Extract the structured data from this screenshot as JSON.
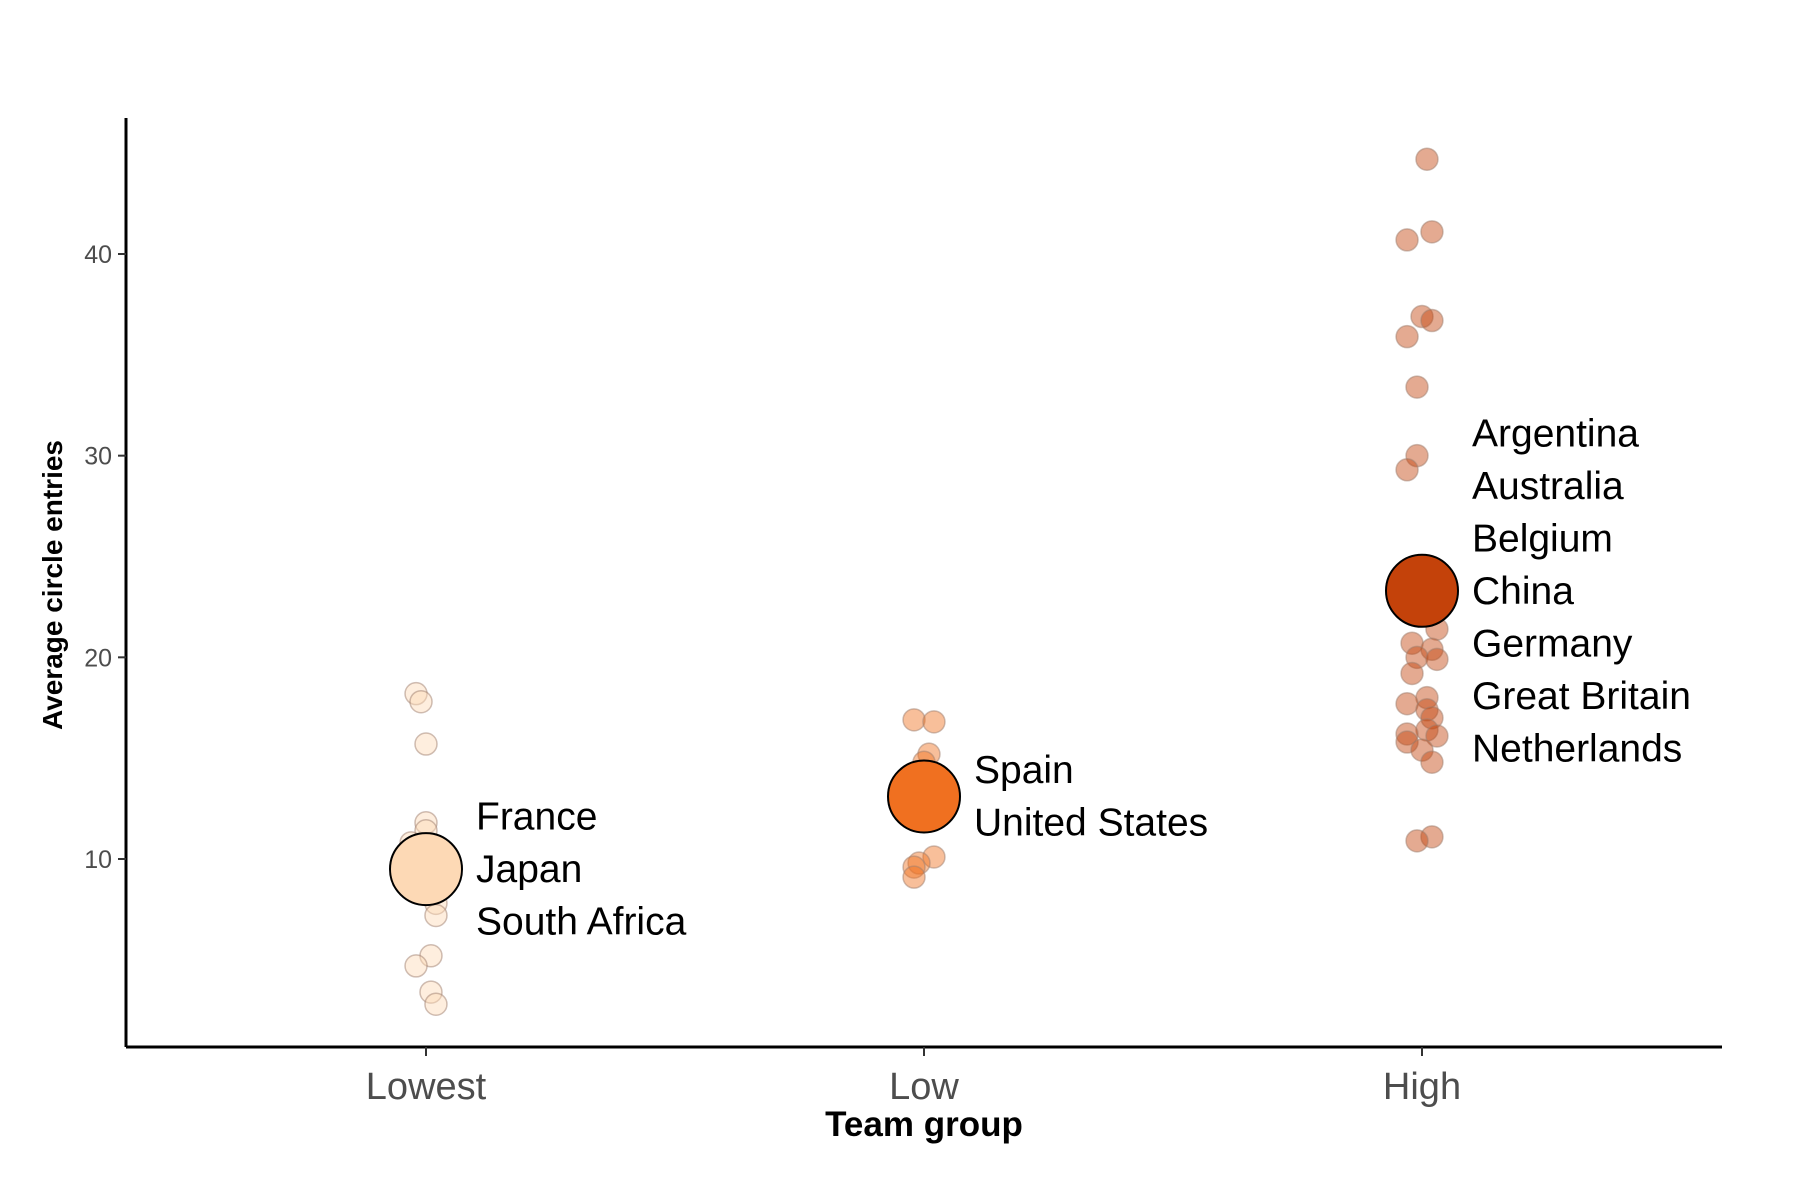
{
  "chart_data": {
    "type": "scatter",
    "title": "",
    "xlabel": "Team group",
    "ylabel": "Average circle entries",
    "categories": [
      "Lowest",
      "Low",
      "High"
    ],
    "ylim": [
      1.4,
      47.5
    ],
    "yticks": [
      10,
      20,
      30,
      40
    ],
    "grid": false,
    "legend": "none",
    "series": [
      {
        "category": "Lowest",
        "color": "#fdd9b5",
        "mean": 9.5,
        "points": [
          18.2,
          17.8,
          15.7,
          11.8,
          11.4,
          10.8,
          10.5,
          10.1,
          9.8,
          9.4,
          9.0,
          8.4,
          7.8,
          7.2,
          5.2,
          4.7,
          3.4,
          2.8
        ],
        "jitter": [
          -0.02,
          -0.01,
          0.0,
          0.0,
          0.0,
          -0.03,
          0.01,
          0.02,
          -0.02,
          -0.01,
          0.03,
          0.0,
          0.02,
          0.02,
          0.01,
          -0.02,
          0.01,
          0.02
        ],
        "countries": [
          "France",
          "Japan",
          "South Africa"
        ]
      },
      {
        "category": "Low",
        "color": "#f07020",
        "mean": 13.1,
        "points": [
          16.9,
          16.8,
          15.2,
          14.8,
          10.1,
          9.8,
          9.6,
          9.1
        ],
        "jitter": [
          -0.02,
          0.02,
          0.01,
          0.0,
          0.02,
          -0.01,
          -0.02,
          -0.02
        ],
        "countries": [
          "Spain",
          "United States"
        ]
      },
      {
        "category": "High",
        "color": "#c4420a",
        "mean": 23.3,
        "points": [
          44.7,
          41.1,
          40.7,
          36.9,
          36.7,
          35.9,
          33.4,
          30.0,
          29.3,
          24.4,
          23.8,
          22.5,
          21.4,
          20.7,
          20.4,
          20.0,
          19.9,
          19.2,
          18.0,
          17.7,
          17.4,
          17.0,
          16.4,
          16.2,
          16.1,
          15.8,
          15.4,
          14.8,
          11.1,
          10.9
        ],
        "jitter": [
          0.01,
          0.02,
          -0.03,
          0.0,
          0.02,
          -0.03,
          -0.01,
          -0.01,
          -0.03,
          0.0,
          0.02,
          -0.02,
          0.03,
          -0.02,
          0.02,
          -0.01,
          0.03,
          -0.02,
          0.01,
          -0.03,
          0.01,
          0.02,
          0.01,
          -0.03,
          0.03,
          -0.03,
          0.0,
          0.02,
          0.02,
          -0.01
        ],
        "countries": [
          "Argentina",
          "Australia",
          "Belgium",
          "China",
          "Germany",
          "Great Britain",
          "Netherlands"
        ]
      }
    ]
  }
}
